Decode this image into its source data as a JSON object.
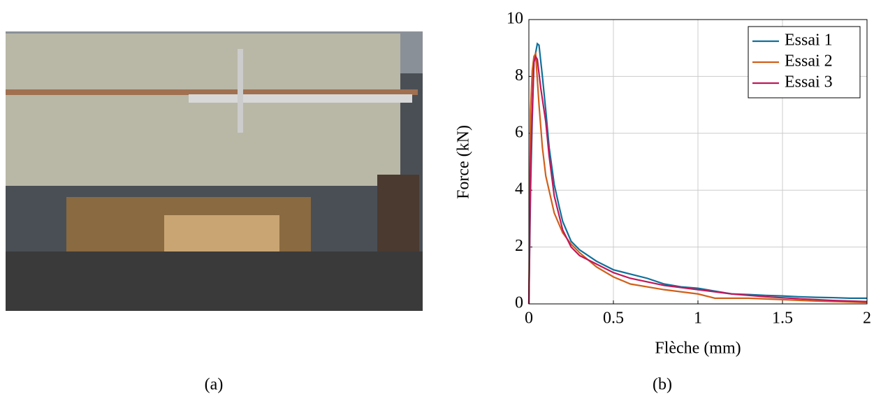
{
  "captions": [
    "(a)",
    "(b)"
  ],
  "chart_data": {
    "type": "line",
    "xlabel": "Flèche (mm)",
    "ylabel": "Force (kN)",
    "xlim": [
      0,
      2
    ],
    "xticks": [
      0,
      0.5,
      1,
      1.5,
      2
    ],
    "ylim": [
      0,
      10
    ],
    "yticks": [
      0,
      2,
      4,
      6,
      8,
      10
    ],
    "grid": true,
    "legend": "upper-right",
    "series": [
      {
        "name": "Essai 1",
        "color": "#10709a",
        "x": [
          0,
          0.01,
          0.02,
          0.03,
          0.05,
          0.06,
          0.08,
          0.1,
          0.12,
          0.15,
          0.18,
          0.2,
          0.25,
          0.3,
          0.4,
          0.5,
          0.6,
          0.7,
          0.8,
          0.9,
          1.0,
          1.1,
          1.2,
          1.3,
          1.4,
          1.5,
          1.6,
          1.7,
          1.8,
          1.9,
          2.0
        ],
        "values": [
          0,
          4,
          6.5,
          8.5,
          9.15,
          9.1,
          8,
          6.8,
          5.5,
          4.2,
          3.4,
          2.9,
          2.2,
          1.9,
          1.5,
          1.2,
          1.05,
          0.9,
          0.7,
          0.6,
          0.55,
          0.45,
          0.35,
          0.33,
          0.3,
          0.28,
          0.25,
          0.23,
          0.22,
          0.2,
          0.2
        ]
      },
      {
        "name": "Essai 2",
        "color": "#d0601a",
        "x": [
          0,
          0.01,
          0.02,
          0.03,
          0.04,
          0.06,
          0.08,
          0.1,
          0.15,
          0.2,
          0.25,
          0.3,
          0.4,
          0.5,
          0.6,
          0.8,
          1.0,
          1.1,
          1.3,
          1.5,
          1.7,
          2.0
        ],
        "values": [
          0,
          6.8,
          8.2,
          8.7,
          8.8,
          7,
          5.5,
          4.5,
          3.2,
          2.5,
          2.1,
          1.8,
          1.3,
          0.95,
          0.7,
          0.5,
          0.35,
          0.2,
          0.2,
          0.15,
          0.1,
          0.05
        ]
      },
      {
        "name": "Essai 3",
        "color": "#c0185a",
        "x": [
          0,
          0.01,
          0.02,
          0.03,
          0.04,
          0.05,
          0.07,
          0.1,
          0.12,
          0.15,
          0.2,
          0.25,
          0.3,
          0.4,
          0.5,
          0.6,
          0.8,
          1.0,
          1.2,
          1.4,
          1.6,
          1.8,
          2.0
        ],
        "values": [
          0,
          4.8,
          6.8,
          8.5,
          8.7,
          8.6,
          7.6,
          6.4,
          5.2,
          3.8,
          2.6,
          2.0,
          1.7,
          1.4,
          1.1,
          0.9,
          0.65,
          0.5,
          0.35,
          0.25,
          0.18,
          0.12,
          0.08
        ]
      }
    ]
  }
}
